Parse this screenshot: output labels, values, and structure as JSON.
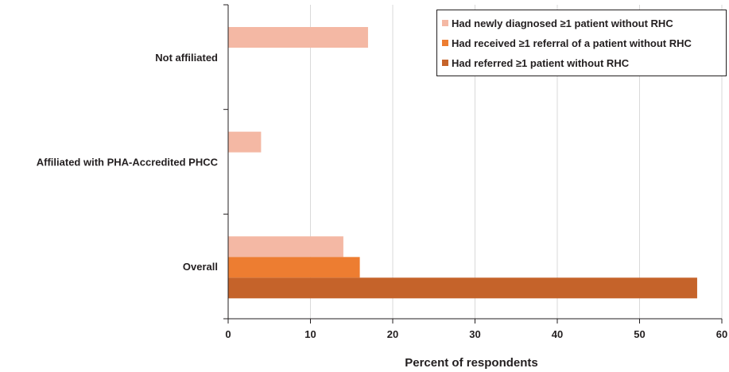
{
  "chart_data": {
    "type": "bar",
    "orientation": "horizontal",
    "categories": [
      "Not affiliated",
      "Affiliated with PHA-Accredited PHCC",
      "Overall"
    ],
    "series": [
      {
        "name": "Had newly diagnosed ≥1 patient without RHC",
        "color": "#f4b8a4",
        "values": [
          17,
          4,
          14
        ]
      },
      {
        "name": "Had received ≥1 referral of a patient without RHC",
        "color": "#ed7d31",
        "values": [
          null,
          null,
          16
        ]
      },
      {
        "name": "Had referred ≥1 patient without RHC",
        "color": "#c5632a",
        "values": [
          null,
          null,
          57
        ]
      }
    ],
    "xlabel": "Percent of respondents",
    "ylabel": "",
    "xlim": [
      0,
      60
    ],
    "xticks": [
      "0",
      "10",
      "20",
      "30",
      "40",
      "50",
      "60"
    ],
    "grid": "vertical",
    "legend_position": "top-right"
  }
}
